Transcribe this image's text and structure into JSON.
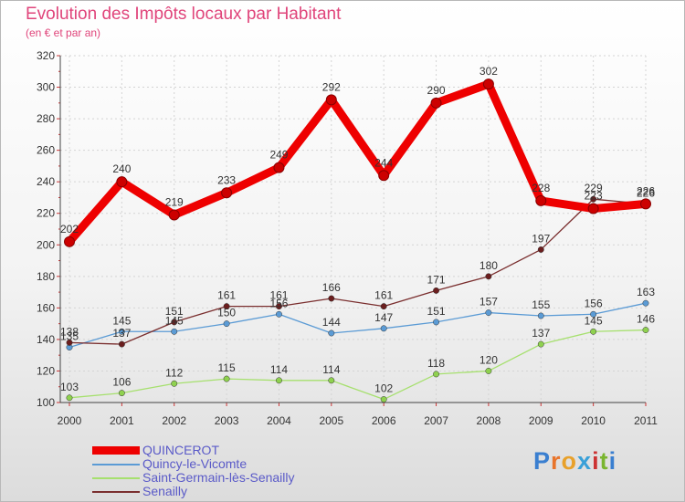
{
  "title": "Evolution des Impôts locaux par Habitant",
  "subtitle": "(en € et par an)",
  "logo": "Proxiti",
  "chart_data": {
    "type": "line",
    "title": "Evolution des Impôts locaux par Habitant",
    "subtitle": "(en € et par an)",
    "xlabel": "",
    "ylabel": "",
    "x": [
      "2000",
      "2001",
      "2002",
      "2003",
      "2004",
      "2005",
      "2006",
      "2007",
      "2008",
      "2009",
      "2010",
      "2011"
    ],
    "ylim": [
      100,
      320
    ],
    "yticks": [
      100,
      120,
      140,
      160,
      180,
      200,
      220,
      240,
      260,
      280,
      300,
      320
    ],
    "grid": true,
    "legend_position": "bottom-left",
    "series": [
      {
        "name": "QUINCEROT",
        "color": "#ee0000",
        "marker": "#ee0000",
        "width": "thick",
        "values": [
          202,
          240,
          219,
          233,
          249,
          292,
          244,
          290,
          302,
          228,
          223,
          226
        ]
      },
      {
        "name": "Quincy-le-Vicomte",
        "color": "#5b9bd5",
        "marker": "#5b9bd5",
        "width": "thin",
        "values": [
          135,
          145,
          145,
          150,
          156,
          144,
          147,
          151,
          157,
          155,
          156,
          163
        ]
      },
      {
        "name": "Saint-Germain-lès-Senailly",
        "color": "#a6e06e",
        "marker": "#8fd14f",
        "width": "thin",
        "values": [
          103,
          106,
          112,
          115,
          114,
          114,
          102,
          118,
          120,
          137,
          145,
          146
        ]
      },
      {
        "name": "Senailly",
        "color": "#7a2e2e",
        "marker": "#6b1e1e",
        "width": "thin",
        "values": [
          138,
          137,
          151,
          161,
          161,
          166,
          161,
          171,
          180,
          197,
          229,
          226
        ]
      }
    ]
  }
}
